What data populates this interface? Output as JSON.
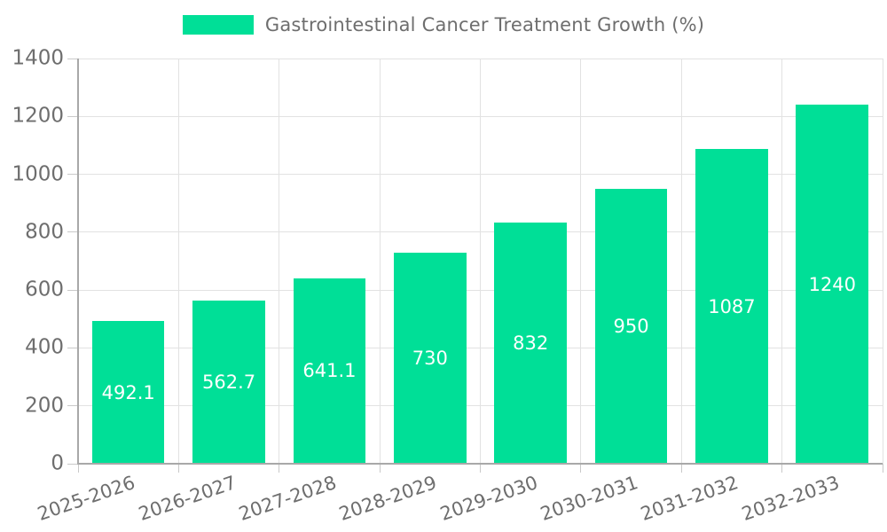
{
  "legend": {
    "label": "Gastrointestinal Cancer Treatment Growth (%)"
  },
  "chart_data": {
    "type": "bar",
    "title": "",
    "series_name": "Gastrointestinal Cancer Treatment Growth (%)",
    "categories": [
      "2025-2026",
      "2026-2027",
      "2027-2028",
      "2028-2029",
      "2029-2030",
      "2030-2031",
      "2031-2032",
      "2032-2033"
    ],
    "values": [
      492.1,
      562.7,
      641.1,
      730,
      832,
      950,
      1087,
      1240
    ],
    "value_labels": [
      "492.1",
      "562.7",
      "641.1",
      "730",
      "832",
      "950",
      "1087",
      "1240"
    ],
    "xlabel": "",
    "ylabel": "",
    "ylim": [
      0,
      1400
    ],
    "ytick_step": 200,
    "ytick_labels": [
      "0",
      "200",
      "400",
      "600",
      "800",
      "1000",
      "1200",
      "1400"
    ],
    "grid": true,
    "legend_position": "top-center",
    "bar_label_position": "inside-center",
    "xtick_label_rotation_deg": -19
  },
  "colors": {
    "bar": "#00df97",
    "bar_value_label": "#ffffff",
    "axis_text": "#6e6e6e",
    "legend_text": "#6e6e6e",
    "gridline": "#e2e2e2",
    "axis_line": "#a8a8a8",
    "tick": "#c9c9c9",
    "background": "#ffffff"
  }
}
